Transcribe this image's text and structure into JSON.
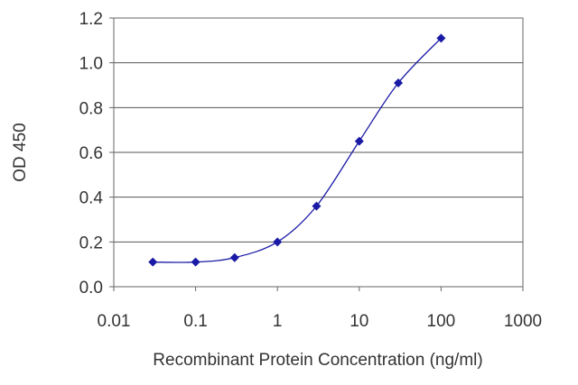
{
  "chart_data": {
    "type": "line",
    "xlabel": "Recombinant Protein Concentration (ng/ml)",
    "ylabel": "OD 450",
    "xscale": "log",
    "xlim": [
      0.01,
      1000
    ],
    "ylim": [
      0.0,
      1.2
    ],
    "x_ticks": [
      "0.01",
      "0.1",
      "1",
      "10",
      "100",
      "1000"
    ],
    "y_ticks": [
      "0.0",
      "0.2",
      "0.4",
      "0.6",
      "0.8",
      "1.0",
      "1.2"
    ],
    "grid": "horizontal",
    "series": [
      {
        "color": "#1a1aa6",
        "marker": "diamond",
        "points": [
          {
            "x": 0.03,
            "y": 0.11
          },
          {
            "x": 0.1,
            "y": 0.11
          },
          {
            "x": 0.3,
            "y": 0.13
          },
          {
            "x": 1,
            "y": 0.2
          },
          {
            "x": 3,
            "y": 0.36
          },
          {
            "x": 10,
            "y": 0.65
          },
          {
            "x": 30,
            "y": 0.91
          },
          {
            "x": 100,
            "y": 1.11
          }
        ]
      }
    ]
  }
}
